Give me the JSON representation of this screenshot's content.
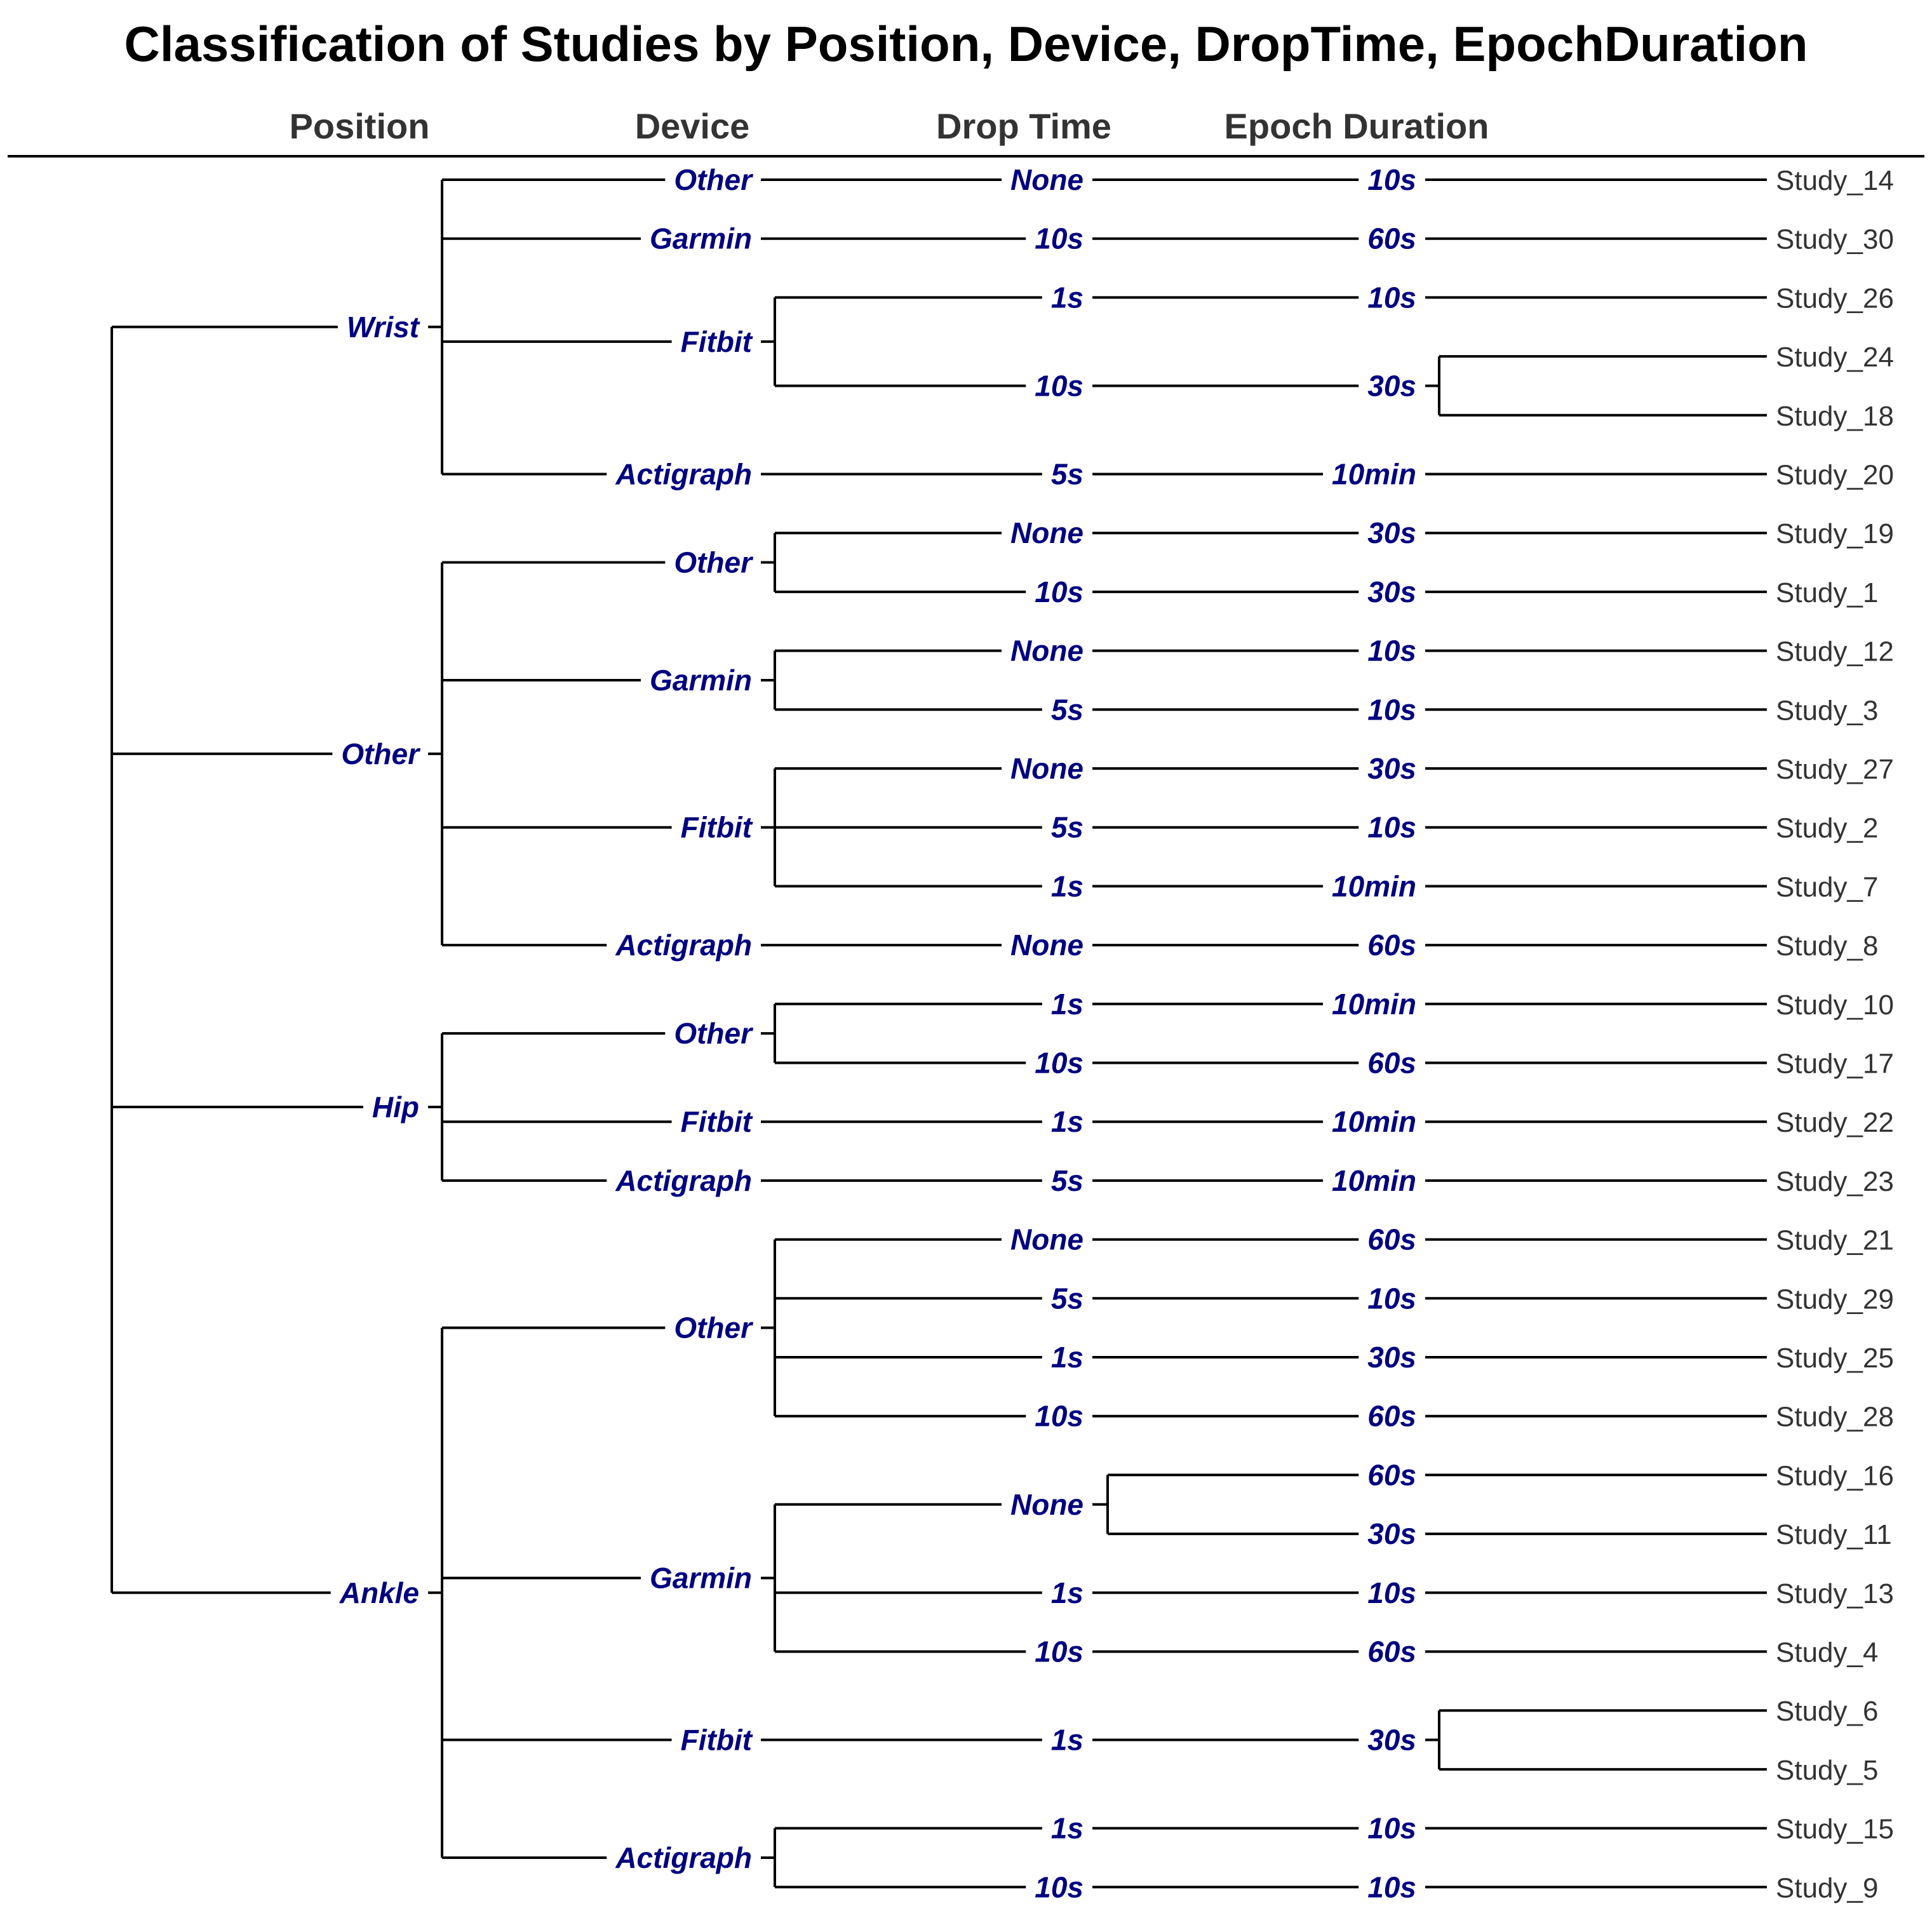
{
  "title": "Classification of Studies by Position, Device, DropTime, EpochDuration",
  "columns": [
    "Position",
    "Device",
    "Drop Time",
    "Epoch Duration"
  ],
  "tree": [
    {
      "label": "Wrist",
      "children": [
        {
          "label": "Other",
          "children": [
            {
              "label": "None",
              "children": [
                {
                  "label": "10s",
                  "children": [
                    {
                      "label": "Study_14"
                    }
                  ]
                }
              ]
            }
          ]
        },
        {
          "label": "Garmin",
          "children": [
            {
              "label": "10s",
              "children": [
                {
                  "label": "60s",
                  "children": [
                    {
                      "label": "Study_30"
                    }
                  ]
                }
              ]
            }
          ]
        },
        {
          "label": "Fitbit",
          "children": [
            {
              "label": "1s",
              "children": [
                {
                  "label": "10s",
                  "children": [
                    {
                      "label": "Study_26"
                    }
                  ]
                }
              ]
            },
            {
              "label": "10s",
              "children": [
                {
                  "label": "30s",
                  "children": [
                    {
                      "label": "Study_24"
                    },
                    {
                      "label": "Study_18"
                    }
                  ]
                }
              ]
            }
          ]
        },
        {
          "label": "Actigraph",
          "children": [
            {
              "label": "5s",
              "children": [
                {
                  "label": "10min",
                  "children": [
                    {
                      "label": "Study_20"
                    }
                  ]
                }
              ]
            }
          ]
        }
      ]
    },
    {
      "label": "Other",
      "children": [
        {
          "label": "Other",
          "children": [
            {
              "label": "None",
              "children": [
                {
                  "label": "30s",
                  "children": [
                    {
                      "label": "Study_19"
                    }
                  ]
                }
              ]
            },
            {
              "label": "10s",
              "children": [
                {
                  "label": "30s",
                  "children": [
                    {
                      "label": "Study_1"
                    }
                  ]
                }
              ]
            }
          ]
        },
        {
          "label": "Garmin",
          "children": [
            {
              "label": "None",
              "children": [
                {
                  "label": "10s",
                  "children": [
                    {
                      "label": "Study_12"
                    }
                  ]
                }
              ]
            },
            {
              "label": "5s",
              "children": [
                {
                  "label": "10s",
                  "children": [
                    {
                      "label": "Study_3"
                    }
                  ]
                }
              ]
            }
          ]
        },
        {
          "label": "Fitbit",
          "children": [
            {
              "label": "None",
              "children": [
                {
                  "label": "30s",
                  "children": [
                    {
                      "label": "Study_27"
                    }
                  ]
                }
              ]
            },
            {
              "label": "5s",
              "children": [
                {
                  "label": "10s",
                  "children": [
                    {
                      "label": "Study_2"
                    }
                  ]
                }
              ]
            },
            {
              "label": "1s",
              "children": [
                {
                  "label": "10min",
                  "children": [
                    {
                      "label": "Study_7"
                    }
                  ]
                }
              ]
            }
          ]
        },
        {
          "label": "Actigraph",
          "children": [
            {
              "label": "None",
              "children": [
                {
                  "label": "60s",
                  "children": [
                    {
                      "label": "Study_8"
                    }
                  ]
                }
              ]
            }
          ]
        }
      ]
    },
    {
      "label": "Hip",
      "children": [
        {
          "label": "Other",
          "children": [
            {
              "label": "1s",
              "children": [
                {
                  "label": "10min",
                  "children": [
                    {
                      "label": "Study_10"
                    }
                  ]
                }
              ]
            },
            {
              "label": "10s",
              "children": [
                {
                  "label": "60s",
                  "children": [
                    {
                      "label": "Study_17"
                    }
                  ]
                }
              ]
            }
          ]
        },
        {
          "label": "Fitbit",
          "children": [
            {
              "label": "1s",
              "children": [
                {
                  "label": "10min",
                  "children": [
                    {
                      "label": "Study_22"
                    }
                  ]
                }
              ]
            }
          ]
        },
        {
          "label": "Actigraph",
          "children": [
            {
              "label": "5s",
              "children": [
                {
                  "label": "10min",
                  "children": [
                    {
                      "label": "Study_23"
                    }
                  ]
                }
              ]
            }
          ]
        }
      ]
    },
    {
      "label": "Ankle",
      "children": [
        {
          "label": "Other",
          "children": [
            {
              "label": "None",
              "children": [
                {
                  "label": "60s",
                  "children": [
                    {
                      "label": "Study_21"
                    }
                  ]
                }
              ]
            },
            {
              "label": "5s",
              "children": [
                {
                  "label": "10s",
                  "children": [
                    {
                      "label": "Study_29"
                    }
                  ]
                }
              ]
            },
            {
              "label": "1s",
              "children": [
                {
                  "label": "30s",
                  "children": [
                    {
                      "label": "Study_25"
                    }
                  ]
                }
              ]
            },
            {
              "label": "10s",
              "children": [
                {
                  "label": "60s",
                  "children": [
                    {
                      "label": "Study_28"
                    }
                  ]
                }
              ]
            }
          ]
        },
        {
          "label": "Garmin",
          "children": [
            {
              "label": "None",
              "children": [
                {
                  "label": "60s",
                  "children": [
                    {
                      "label": "Study_16"
                    }
                  ]
                },
                {
                  "label": "30s",
                  "children": [
                    {
                      "label": "Study_11"
                    }
                  ]
                }
              ]
            },
            {
              "label": "1s",
              "children": [
                {
                  "label": "10s",
                  "children": [
                    {
                      "label": "Study_13"
                    }
                  ]
                }
              ]
            },
            {
              "label": "10s",
              "children": [
                {
                  "label": "60s",
                  "children": [
                    {
                      "label": "Study_4"
                    }
                  ]
                }
              ]
            }
          ]
        },
        {
          "label": "Fitbit",
          "children": [
            {
              "label": "1s",
              "children": [
                {
                  "label": "30s",
                  "children": [
                    {
                      "label": "Study_6"
                    },
                    {
                      "label": "Study_5"
                    }
                  ]
                }
              ]
            }
          ]
        },
        {
          "label": "Actigraph",
          "children": [
            {
              "label": "1s",
              "children": [
                {
                  "label": "10s",
                  "children": [
                    {
                      "label": "Study_15"
                    }
                  ]
                }
              ]
            },
            {
              "label": "10s",
              "children": [
                {
                  "label": "10s",
                  "children": [
                    {
                      "label": "Study_9"
                    }
                  ]
                }
              ]
            }
          ]
        }
      ]
    }
  ]
}
